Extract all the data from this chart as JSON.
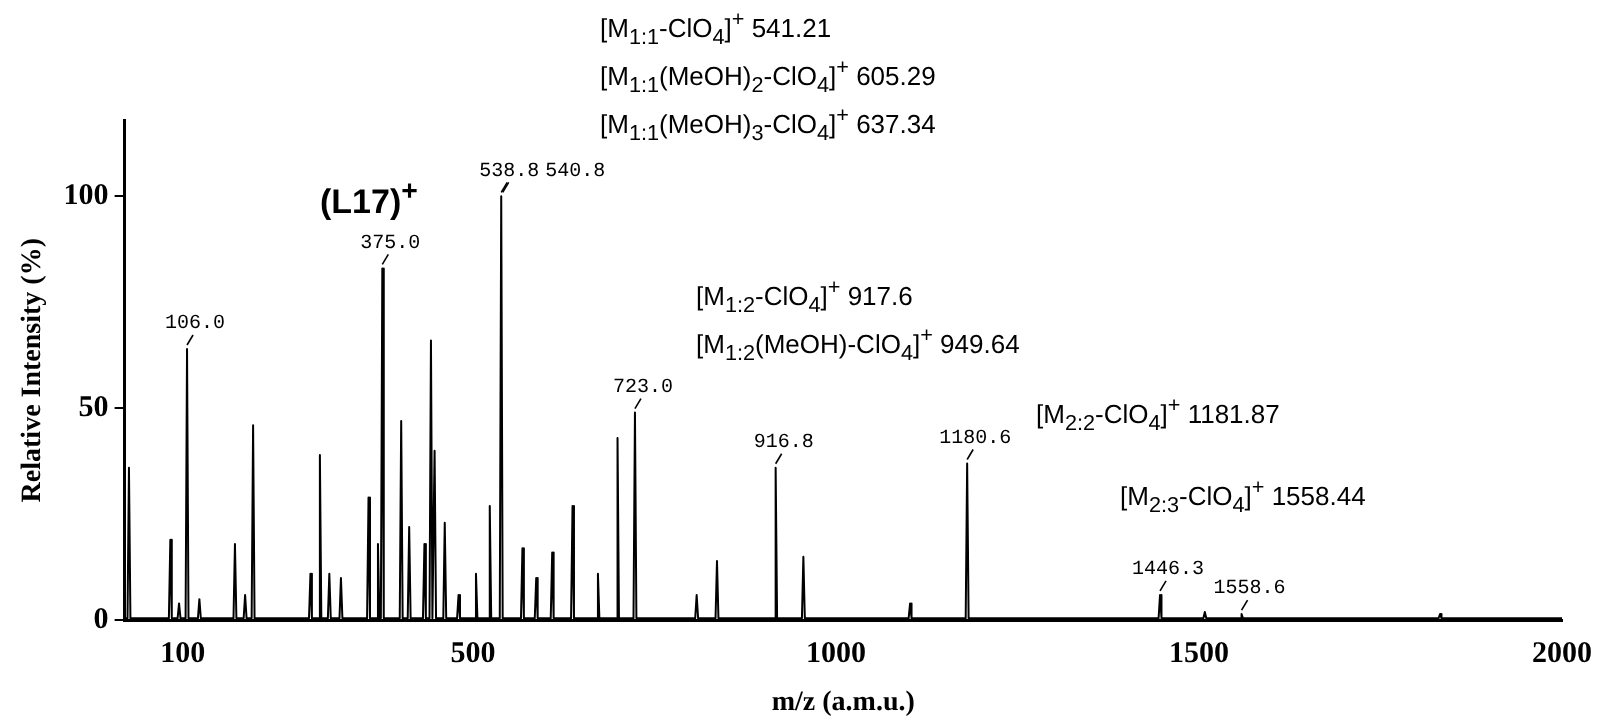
{
  "chart_data": {
    "type": "line",
    "xlabel": "m/z (a.m.u.)",
    "ylabel": "Relative Intensity (%)",
    "color": "#000000",
    "marker": "none",
    "line_style": "solid",
    "legend": false,
    "grid": false,
    "xlim": [
      20,
      2000
    ],
    "xticks": [
      100,
      500,
      1000,
      1500,
      2000
    ],
    "ylim": [
      0,
      118
    ],
    "yticks": [
      0,
      50,
      100
    ],
    "x": [
      20,
      24,
      26,
      28,
      81,
      83,
      85,
      93,
      95,
      97,
      104,
      106,
      108,
      121,
      123,
      125,
      170,
      172,
      174,
      184,
      186,
      188,
      195,
      197,
      199,
      274,
      276,
      278,
      287,
      289,
      291,
      300,
      302,
      304,
      316,
      318,
      320,
      354,
      356,
      358,
      367,
      369,
      371,
      373,
      375,
      377,
      399,
      401,
      403,
      410,
      412,
      414,
      431,
      433,
      435,
      440,
      442,
      444,
      445,
      447,
      449,
      459,
      461,
      463,
      478,
      480,
      482,
      502,
      504,
      506,
      521,
      523,
      525,
      536.8,
      538.8,
      540.8,
      566,
      568,
      570,
      585,
      587,
      589,
      607,
      609,
      611,
      635,
      637,
      639,
      670,
      672,
      674,
      697,
      699,
      701,
      721,
      723,
      725,
      806,
      808,
      810,
      834,
      836,
      838,
      914.8,
      916.8,
      918.8,
      953,
      955,
      957,
      1100,
      1102,
      1104,
      1178.6,
      1180.6,
      1182.6,
      1444.3,
      1446.3,
      1448.3,
      1506,
      1508,
      1510,
      1556.6,
      1558.6,
      1560.6,
      1830,
      1832,
      1834,
      2000
    ],
    "values": [
      0.5,
      0.5,
      36,
      0.5,
      0.5,
      19,
      0.5,
      0.5,
      4,
      0.5,
      0.5,
      64,
      0.5,
      0.5,
      5,
      0.5,
      0.5,
      18,
      0.5,
      0.5,
      6,
      0.5,
      0.5,
      46,
      0.5,
      0.5,
      11,
      0.5,
      0.5,
      39,
      0.5,
      0.5,
      11,
      0.5,
      0.5,
      10,
      0.5,
      0.5,
      29,
      0.5,
      0.5,
      18,
      0.5,
      0.5,
      83,
      0.5,
      0.5,
      47,
      0.5,
      0.5,
      22,
      0.5,
      0.5,
      18,
      0.5,
      0.5,
      66,
      0.5,
      0.5,
      40,
      0.5,
      0.5,
      23,
      0.5,
      0.5,
      6,
      0.5,
      0.5,
      11,
      0.5,
      0.5,
      27,
      0.5,
      0.5,
      100,
      0.5,
      0.5,
      17,
      0.5,
      0.5,
      10,
      0.5,
      0.5,
      16,
      0.5,
      0.5,
      27,
      0.5,
      0.5,
      11,
      0.5,
      0.5,
      43,
      0.5,
      0.5,
      49,
      0.5,
      0.5,
      6,
      0.5,
      0.5,
      14,
      0.5,
      0.5,
      36,
      0.5,
      0.5,
      15,
      0.5,
      0.5,
      4,
      0.5,
      0.5,
      37,
      0.5,
      0.5,
      6,
      0.5,
      0.5,
      2,
      0.5,
      0.5,
      1.5,
      0.5,
      0.5,
      1.5,
      0.5,
      0.5
    ],
    "annotations": [
      {
        "text": "106.0",
        "x": 106,
        "y": 64
      },
      {
        "text": "375.0",
        "x": 375,
        "y": 83
      },
      {
        "text": "538.8",
        "x": 538.8,
        "y": 100
      },
      {
        "text": "540.8",
        "x": 540.8,
        "y": 100
      },
      {
        "text": "723.0",
        "x": 723,
        "y": 49
      },
      {
        "text": "916.8",
        "x": 916.8,
        "y": 36
      },
      {
        "text": "1180.6",
        "x": 1180.6,
        "y": 37
      },
      {
        "text": "1446.3",
        "x": 1446.3,
        "y": 6
      },
      {
        "text": "1558.6",
        "x": 1558.6,
        "y": 1.5
      },
      "(L17)$^{+}$",
      "[M$_{1:1}$-ClO$_{4}$]$^{+}$ 541.21",
      "[M$_{1:1}$(MeOH)$_{2}$-ClO$_{4}$]$^{+}$ 605.29",
      "[M$_{1:1}$(MeOH)$_{3}$-ClO$_{4}$]$^{+}$ 637.34",
      "[M$_{1:2}$-ClO$_{4}$]$^{+}$ 917.6",
      "[M$_{1:2}$(MeOH)-ClO$_{4}$]$^{+}$ 949.64",
      "[M$_{2:2}$-ClO$_{4}$]$^{+}$ 1181.87",
      "[M$_{2:3}$-ClO$_{4}$]$^{+}$ 1558.44"
    ]
  }
}
